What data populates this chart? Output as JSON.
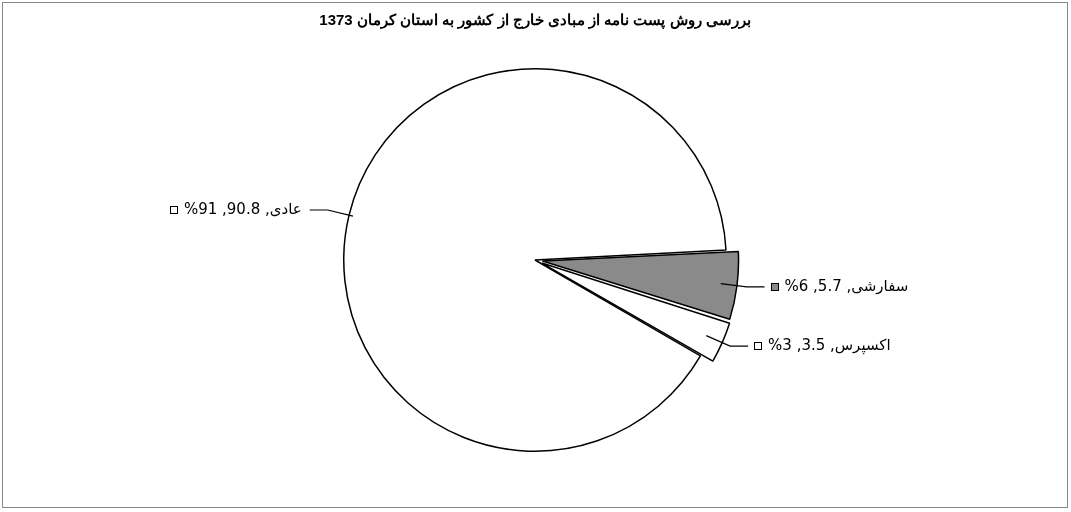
{
  "chart_data": {
    "type": "pie",
    "title": "بررسی روش پست نامه از مبادی خارج از کشور به استان کرمان 1373",
    "categories": [
      "سفارشی",
      "اکسپرس",
      "عادی"
    ],
    "values": [
      5.7,
      3.5,
      90.8
    ],
    "value_labels": [
      ", 5.7, 6%",
      ", 3.5, 3%",
      ", 90.8, 91%"
    ],
    "colors": [
      "#8a8a8a",
      "#ffffff",
      "#ffffff"
    ],
    "legend": "right"
  }
}
